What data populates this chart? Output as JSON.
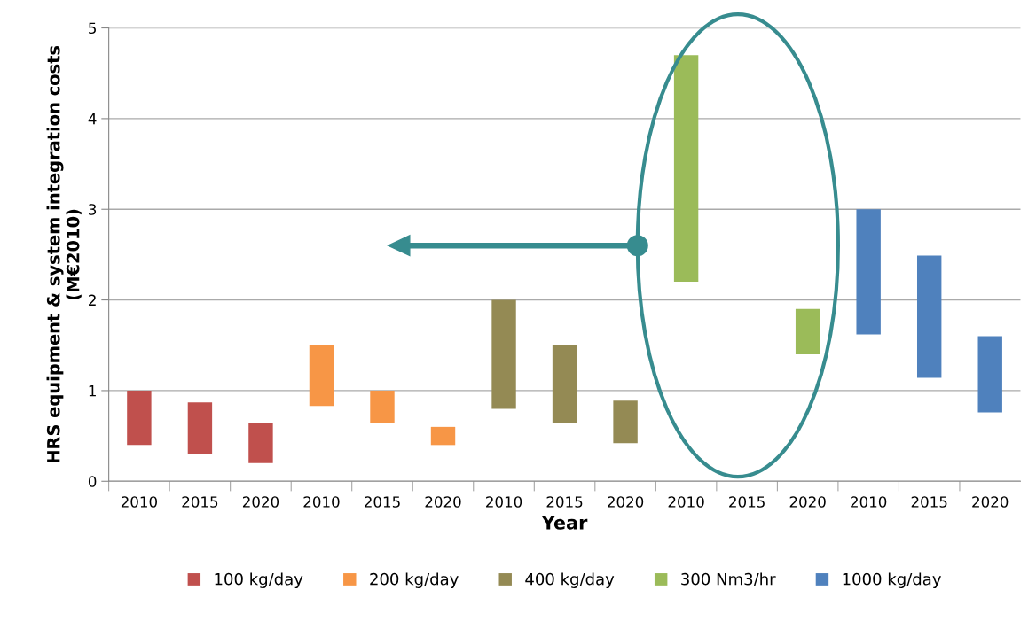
{
  "chart_data": {
    "type": "bar",
    "xlabel": "Year",
    "ylabel": "HRS equipment & system integration costs\n(M€2010)",
    "categories": [
      "2010",
      "2015",
      "2020",
      "2010",
      "2015",
      "2020",
      "2010",
      "2015",
      "2020",
      "2010",
      "2015",
      "2020",
      "2010",
      "2015",
      "2020"
    ],
    "series": [
      {
        "name": "100 kg/day",
        "color": "#c0504d",
        "values": [
          0.6,
          0.57,
          0.44,
          null,
          null,
          null,
          null,
          null,
          null,
          null,
          null,
          null,
          null,
          null,
          null
        ],
        "base": [
          0.4,
          0.3,
          0.2,
          null,
          null,
          null,
          null,
          null,
          null,
          null,
          null,
          null,
          null,
          null,
          null
        ]
      },
      {
        "name": "200 kg/day",
        "color": "#f79646",
        "values": [
          null,
          null,
          null,
          0.67,
          0.36,
          0.2,
          null,
          null,
          null,
          null,
          null,
          null,
          null,
          null,
          null
        ],
        "base": [
          null,
          null,
          null,
          0.83,
          0.64,
          0.4,
          null,
          null,
          null,
          null,
          null,
          null,
          null,
          null,
          null
        ]
      },
      {
        "name": "400 kg/day",
        "color": "#948a54",
        "values": [
          null,
          null,
          null,
          null,
          null,
          null,
          1.2,
          0.86,
          0.47,
          null,
          null,
          null,
          null,
          null,
          null
        ],
        "base": [
          null,
          null,
          null,
          null,
          null,
          null,
          0.8,
          0.64,
          0.42,
          null,
          null,
          null,
          null,
          null,
          null
        ]
      },
      {
        "name": "300 Nm3/hr",
        "color": "#9bbb59",
        "values": [
          null,
          null,
          null,
          null,
          null,
          null,
          null,
          null,
          null,
          2.5,
          null,
          0.5,
          null,
          null,
          null
        ],
        "base": [
          null,
          null,
          null,
          null,
          null,
          null,
          null,
          null,
          null,
          2.2,
          null,
          1.4,
          null,
          null,
          null
        ]
      },
      {
        "name": "1000 kg/day",
        "color": "#4f81bd",
        "values": [
          null,
          null,
          null,
          null,
          null,
          null,
          null,
          null,
          null,
          null,
          null,
          null,
          1.38,
          1.35,
          0.84
        ],
        "base": [
          null,
          null,
          null,
          null,
          null,
          null,
          null,
          null,
          null,
          null,
          null,
          null,
          1.62,
          1.14,
          0.76
        ]
      }
    ],
    "ylim": [
      0,
      5
    ],
    "yticks": [
      0,
      1,
      2,
      3,
      4,
      5
    ],
    "grid": "y",
    "legend": "bottom"
  }
}
